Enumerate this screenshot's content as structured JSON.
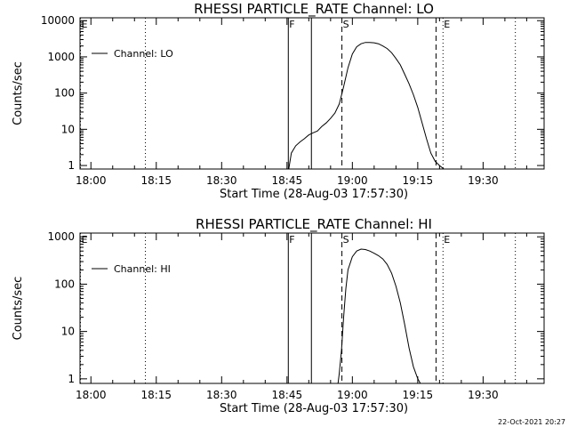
{
  "footer": {
    "timestamp": "22-Oct-2021 20:27"
  },
  "chart_data": [
    {
      "type": "line",
      "title": "RHESSI PARTICLE_RATE Channel: LO",
      "xlabel": "Start Time (28-Aug-03 17:57:30)",
      "ylabel": "Counts/sec",
      "yscale": "log",
      "xlim": [
        1077.5,
        1184
      ],
      "ylim": [
        0.8,
        12000
      ],
      "x_ticks": [
        {
          "x": 1080,
          "label": "18:00"
        },
        {
          "x": 1095,
          "label": "18:15"
        },
        {
          "x": 1110,
          "label": "18:30"
        },
        {
          "x": 1125,
          "label": "18:45"
        },
        {
          "x": 1140,
          "label": "19:00"
        },
        {
          "x": 1155,
          "label": "19:15"
        },
        {
          "x": 1170,
          "label": "19:30"
        }
      ],
      "y_ticks": [
        {
          "y": 1,
          "label": "1"
        },
        {
          "y": 10,
          "label": "10"
        },
        {
          "y": 100,
          "label": "100"
        },
        {
          "y": 1000,
          "label": "1000"
        },
        {
          "y": 10000,
          "label": "10000"
        }
      ],
      "legend": {
        "position": "top-left",
        "entries": [
          "Channel: LO"
        ]
      },
      "markers": [
        {
          "x": 1077.6,
          "label": "E",
          "style": "dotted"
        },
        {
          "x": 1092.5,
          "label": "",
          "style": "dotted"
        },
        {
          "x": 1125.3,
          "label": "F",
          "style": "solid"
        },
        {
          "x": 1130.6,
          "label": "",
          "style": "solid"
        },
        {
          "x": 1137.6,
          "label": "S",
          "style": "dashed"
        },
        {
          "x": 1159.2,
          "label": "",
          "style": "dashed"
        },
        {
          "x": 1160.8,
          "label": "E",
          "style": "dotted"
        },
        {
          "x": 1177.4,
          "label": "",
          "style": "dotted"
        }
      ],
      "series": [
        {
          "name": "Channel: LO",
          "x": [
            1125.4,
            1126,
            1127,
            1128,
            1129,
            1130,
            1131,
            1132,
            1133,
            1134,
            1135,
            1136,
            1137,
            1138,
            1139,
            1140,
            1141,
            1142,
            1143,
            1144,
            1145,
            1146,
            1147,
            1148,
            1149,
            1150,
            1151,
            1152,
            1153,
            1154,
            1155,
            1156,
            1157,
            1158,
            1159,
            1160,
            1161
          ],
          "y": [
            0.8,
            2.2,
            3.5,
            4.5,
            5.5,
            7,
            8,
            9,
            12,
            15,
            20,
            28,
            50,
            150,
            500,
            1200,
            1900,
            2300,
            2500,
            2500,
            2450,
            2300,
            2000,
            1700,
            1300,
            900,
            600,
            330,
            180,
            90,
            40,
            15,
            5.5,
            2.2,
            1.3,
            1.0,
            0.8
          ]
        }
      ]
    },
    {
      "type": "line",
      "title": "RHESSI PARTICLE_RATE Channel: HI",
      "xlabel": "Start Time (28-Aug-03 17:57:30)",
      "ylabel": "Counts/sec",
      "yscale": "log",
      "xlim": [
        1077.5,
        1184
      ],
      "ylim": [
        0.8,
        1200
      ],
      "x_ticks": [
        {
          "x": 1080,
          "label": "18:00"
        },
        {
          "x": 1095,
          "label": "18:15"
        },
        {
          "x": 1110,
          "label": "18:30"
        },
        {
          "x": 1125,
          "label": "18:45"
        },
        {
          "x": 1140,
          "label": "19:00"
        },
        {
          "x": 1155,
          "label": "19:15"
        },
        {
          "x": 1170,
          "label": "19:30"
        }
      ],
      "y_ticks": [
        {
          "y": 1,
          "label": "1"
        },
        {
          "y": 10,
          "label": "10"
        },
        {
          "y": 100,
          "label": "100"
        },
        {
          "y": 1000,
          "label": "1000"
        }
      ],
      "legend": {
        "position": "top-left",
        "entries": [
          "Channel: HI"
        ]
      },
      "markers": [
        {
          "x": 1077.6,
          "label": "E",
          "style": "dotted"
        },
        {
          "x": 1092.5,
          "label": "",
          "style": "dotted"
        },
        {
          "x": 1125.3,
          "label": "F",
          "style": "solid"
        },
        {
          "x": 1130.6,
          "label": "",
          "style": "solid"
        },
        {
          "x": 1137.6,
          "label": "S",
          "style": "dashed"
        },
        {
          "x": 1159.2,
          "label": "",
          "style": "dashed"
        },
        {
          "x": 1160.8,
          "label": "E",
          "style": "dotted"
        },
        {
          "x": 1177.4,
          "label": "",
          "style": "dotted"
        }
      ],
      "series": [
        {
          "name": "Channel: HI",
          "x": [
            1136.7,
            1137,
            1137.5,
            1138,
            1138.5,
            1139,
            1140,
            1141,
            1142,
            1143,
            1144,
            1145,
            1146,
            1147,
            1148,
            1149,
            1150,
            1151,
            1152,
            1153,
            1154,
            1155,
            1155.6
          ],
          "y": [
            0.8,
            1.3,
            4,
            20,
            80,
            200,
            380,
            500,
            550,
            540,
            500,
            450,
            400,
            340,
            260,
            170,
            90,
            40,
            14,
            4.5,
            1.8,
            1.0,
            0.8
          ]
        }
      ]
    }
  ]
}
